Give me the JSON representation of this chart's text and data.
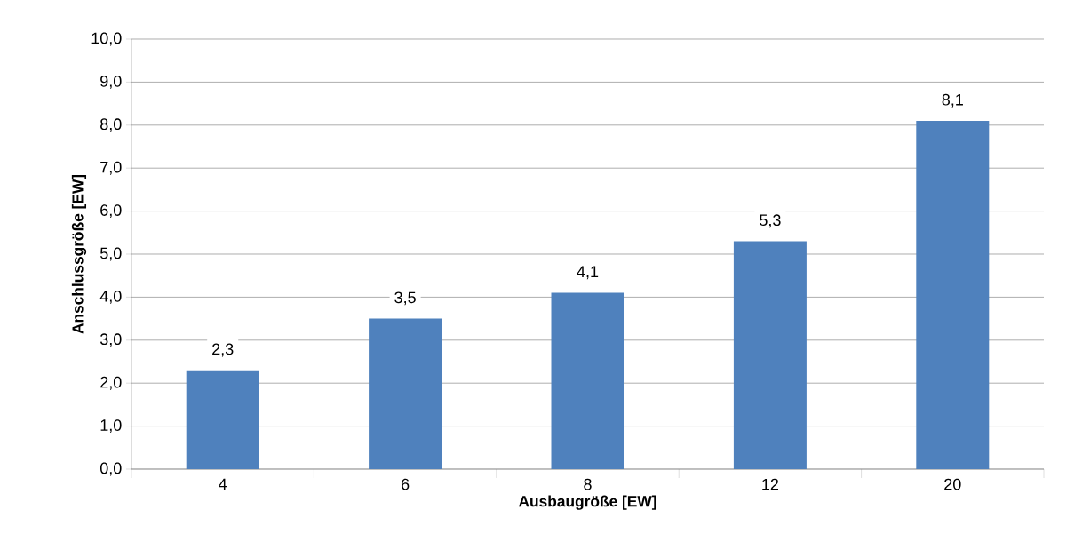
{
  "chart_data": {
    "type": "bar",
    "xlabel": "Ausbaugröße [EW]",
    "ylabel": "Anschlussgröße [EW]",
    "categories": [
      "4",
      "6",
      "8",
      "12",
      "20"
    ],
    "values": [
      2.3,
      3.5,
      4.1,
      5.3,
      8.1
    ],
    "value_labels": [
      "2,3",
      "3,5",
      "4,1",
      "5,3",
      "8,1"
    ],
    "color": "#4f81bd",
    "ylim": [
      0,
      10
    ],
    "yticks": [
      {
        "value": 0,
        "label": "0,0"
      },
      {
        "value": 1,
        "label": "1,0"
      },
      {
        "value": 2,
        "label": "2,0"
      },
      {
        "value": 3,
        "label": "3,0"
      },
      {
        "value": 4,
        "label": "4,0"
      },
      {
        "value": 5,
        "label": "5,0"
      },
      {
        "value": 6,
        "label": "6,0"
      },
      {
        "value": 7,
        "label": "7,0"
      },
      {
        "value": 8,
        "label": "8,0"
      },
      {
        "value": 9,
        "label": "9,0"
      },
      {
        "value": 10,
        "label": "10,0"
      }
    ],
    "grid": "y"
  }
}
